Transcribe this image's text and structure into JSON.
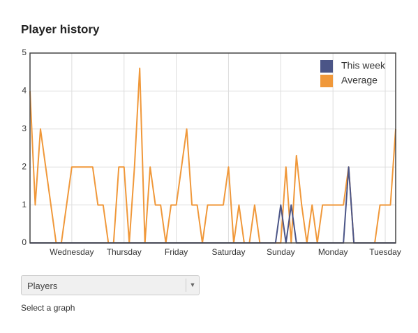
{
  "chart_data": {
    "type": "line",
    "title": "Player history",
    "x": [
      0,
      1,
      2,
      3,
      4,
      5,
      6,
      7,
      8,
      9,
      10,
      11,
      12,
      13,
      14,
      15,
      16,
      17,
      18,
      19,
      20,
      21,
      22,
      23,
      24,
      25,
      26,
      27,
      28,
      29,
      30,
      31,
      32,
      33,
      34,
      35,
      36,
      37,
      38,
      39,
      40,
      41,
      42,
      43,
      44,
      45,
      46,
      47,
      48,
      49,
      50,
      51,
      52,
      53,
      54,
      55,
      56,
      57,
      58,
      59,
      60,
      61,
      62,
      63,
      64,
      65,
      66,
      67,
      68,
      69,
      70
    ],
    "series": [
      {
        "name": "This week",
        "color": "#4b5587",
        "values": [
          0,
          0,
          0,
          0,
          0,
          0,
          0,
          0,
          0,
          0,
          0,
          0,
          0,
          0,
          0,
          0,
          0,
          0,
          0,
          0,
          0,
          0,
          0,
          0,
          0,
          0,
          0,
          0,
          0,
          0,
          0,
          0,
          0,
          0,
          0,
          0,
          0,
          0,
          0,
          0,
          0,
          0,
          0,
          0,
          0,
          0,
          0,
          0,
          1,
          0,
          1,
          0,
          0,
          0,
          0,
          0,
          0,
          0,
          0,
          0,
          0,
          2,
          0,
          0,
          0,
          0,
          0,
          0,
          0,
          0,
          0
        ]
      },
      {
        "name": "Average",
        "color": "#f0983a",
        "values": [
          4,
          1,
          3,
          2,
          1,
          0,
          0,
          1,
          2,
          2,
          2,
          2,
          2,
          1,
          1,
          0,
          0,
          2,
          2,
          0,
          2,
          4.6,
          0,
          2,
          1,
          1,
          0,
          1,
          1,
          2,
          3,
          1,
          1,
          0,
          1,
          1,
          1,
          1,
          2,
          0,
          1,
          0,
          0,
          1,
          0,
          0,
          0,
          0,
          0,
          2,
          0,
          2.3,
          1,
          0,
          1,
          0,
          1,
          1,
          1,
          1,
          1,
          2,
          0,
          0,
          0,
          0,
          0,
          1,
          1,
          1,
          3
        ]
      }
    ],
    "xlim": [
      0,
      70
    ],
    "xticks": [
      {
        "value": 8,
        "label": "Wednesday"
      },
      {
        "value": 18,
        "label": "Thursday"
      },
      {
        "value": 28,
        "label": "Friday"
      },
      {
        "value": 38,
        "label": "Saturday"
      },
      {
        "value": 48,
        "label": "Sunday"
      },
      {
        "value": 58,
        "label": "Monday"
      },
      {
        "value": 68,
        "label": "Tuesday"
      }
    ],
    "ylim": [
      0,
      5
    ],
    "yticks": [
      0,
      1,
      2,
      3,
      4,
      5
    ],
    "grid": true,
    "legend": "top-right"
  },
  "dropdown": {
    "value": "Players",
    "hint": "Select a graph"
  }
}
